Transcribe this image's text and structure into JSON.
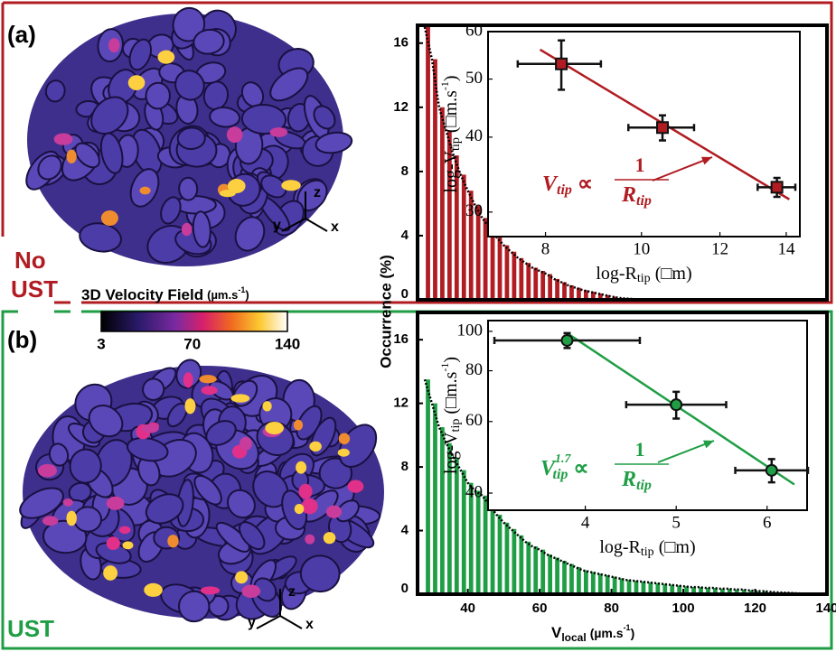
{
  "panels": {
    "a": {
      "label": "(a)",
      "condition": [
        "No",
        "UST"
      ],
      "triad": [
        "z",
        "y",
        "x"
      ]
    },
    "b": {
      "label": "(b)",
      "condition": "UST",
      "triad": [
        "z",
        "y",
        "x"
      ]
    }
  },
  "colorbar": {
    "title": "3D Velocity Field",
    "unit": "(µm.s",
    "unit_sup": "-1",
    "close": ")",
    "ticks": [
      3,
      70,
      140
    ]
  },
  "shared": {
    "ylabel": "Occurrence (%)",
    "xlabel": {
      "text": "V",
      "sub": "local",
      "unit": "(µm.s",
      "sup": "-1",
      "close": ")"
    }
  },
  "chart_data": [
    {
      "type": "histogram",
      "color": "#b01c22",
      "xlim": [
        26,
        140
      ],
      "ylim": [
        0,
        17
      ],
      "yticks": [
        0,
        4,
        8,
        12,
        16
      ],
      "bins": [
        28,
        30,
        32,
        34,
        36,
        38,
        40,
        42,
        44,
        46,
        48,
        50,
        52,
        54,
        56,
        58,
        60,
        62,
        64,
        66,
        68,
        70,
        72,
        74,
        76,
        78,
        80,
        82,
        84,
        86,
        88,
        90
      ],
      "counts": [
        17,
        15,
        12,
        10.5,
        9,
        7.8,
        6.8,
        5.9,
        5.1,
        4.5,
        3.9,
        3.4,
        3.0,
        2.6,
        2.3,
        2.0,
        1.8,
        1.6,
        1.3,
        1.1,
        0.9,
        0.75,
        0.6,
        0.5,
        0.4,
        0.3,
        0.2,
        0.12,
        0.08,
        0.05,
        0.02
      ]
    },
    {
      "type": "histogram",
      "color": "#1f9e45",
      "xlim": [
        26,
        140
      ],
      "ylim": [
        0,
        17.6
      ],
      "yticks": [
        0,
        4,
        8,
        12,
        16
      ],
      "xticks": [
        40,
        60,
        80,
        100,
        120,
        140
      ],
      "bins": [
        28,
        30,
        32,
        34,
        36,
        38,
        40,
        42,
        44,
        46,
        48,
        50,
        52,
        54,
        56,
        58,
        60,
        62,
        64,
        66,
        68,
        70,
        72,
        74,
        76,
        78,
        80,
        82,
        84,
        86,
        88,
        90,
        92,
        94,
        96,
        98,
        100,
        102,
        104,
        106,
        108,
        110,
        112,
        114,
        116,
        118,
        120,
        122,
        124,
        126,
        128,
        130,
        132,
        134,
        136,
        138,
        140
      ],
      "counts": [
        13.5,
        12,
        10.5,
        9.5,
        8.6,
        7.8,
        7.0,
        6.5,
        6.2,
        5.6,
        5.0,
        4.5,
        4.1,
        3.7,
        3.3,
        3.0,
        2.8,
        2.5,
        2.3,
        2.1,
        1.9,
        1.7,
        1.5,
        1.4,
        1.3,
        1.2,
        1.1,
        1.0,
        0.9,
        0.85,
        0.8,
        0.75,
        0.7,
        0.65,
        0.6,
        0.55,
        0.5,
        0.45,
        0.45,
        0.4,
        0.4,
        0.35,
        0.35,
        0.3,
        0.3,
        0.25,
        0.2,
        0.2,
        0.15,
        0.12,
        0.1,
        0.08,
        0.05,
        0.04,
        0.02,
        0.01
      ]
    },
    {
      "type": "scatter",
      "xlog": true,
      "ylog": true,
      "xlim": [
        7,
        14.45
      ],
      "ylim": [
        27.3,
        60
      ],
      "xticks": [
        8,
        10,
        12,
        14
      ],
      "yticks": [
        30,
        40,
        50,
        60
      ],
      "color": "#b01c22",
      "marker": "square",
      "x": [
        8.3,
        10.5,
        13.7
      ],
      "y": [
        53,
        41.5,
        33
      ],
      "xerr": [
        0.8,
        0.8,
        0.6
      ],
      "yerr": [
        5,
        2,
        1.2
      ],
      "fit": {
        "x": [
          7.9,
          14.1
        ],
        "y": [
          56,
          31.5
        ]
      },
      "xlabel": {
        "text": "log-R",
        "sub": "tip",
        "unit": "(□m)"
      },
      "ylabel": {
        "text": "log-V",
        "sub": "tip",
        "unit": "(□m.s",
        "sup": "-1",
        "close": ")"
      },
      "annotation": {
        "v": "V",
        "v_sub": "tip",
        "symbol": "∝",
        "num": "1",
        "den": "R",
        "den_sub": "tip"
      }
    },
    {
      "type": "scatter",
      "xlog": false,
      "ylog": true,
      "xlim": [
        2.93,
        6.44
      ],
      "ylim": [
        36.3,
        106.3
      ],
      "xticks": [
        4,
        5,
        6
      ],
      "yticks": [
        40,
        60,
        80,
        100
      ],
      "color": "#1f9e45",
      "marker": "circle",
      "x": [
        3.8,
        5.0,
        6.05
      ],
      "y": [
        95,
        66,
        45.5
      ],
      "xerr": [
        0.8,
        0.55,
        0.4
      ],
      "yerr": [
        4,
        5,
        3
      ],
      "fit": {
        "x": [
          3.8,
          6.3
        ],
        "y": [
          99,
          42
        ]
      },
      "xlabel": {
        "text": "log-R",
        "sub": "tip",
        "unit": "(□m)"
      },
      "ylabel": {
        "text": "log-V",
        "sub": "tip",
        "unit": "(□m.s",
        "sup": "-1",
        "close": ")"
      },
      "annotation": {
        "v": "V",
        "v_sup": "1.7",
        "v_sub": "tip",
        "symbol": "∝",
        "num": "1",
        "den": "R",
        "den_sub": "tip"
      }
    }
  ]
}
